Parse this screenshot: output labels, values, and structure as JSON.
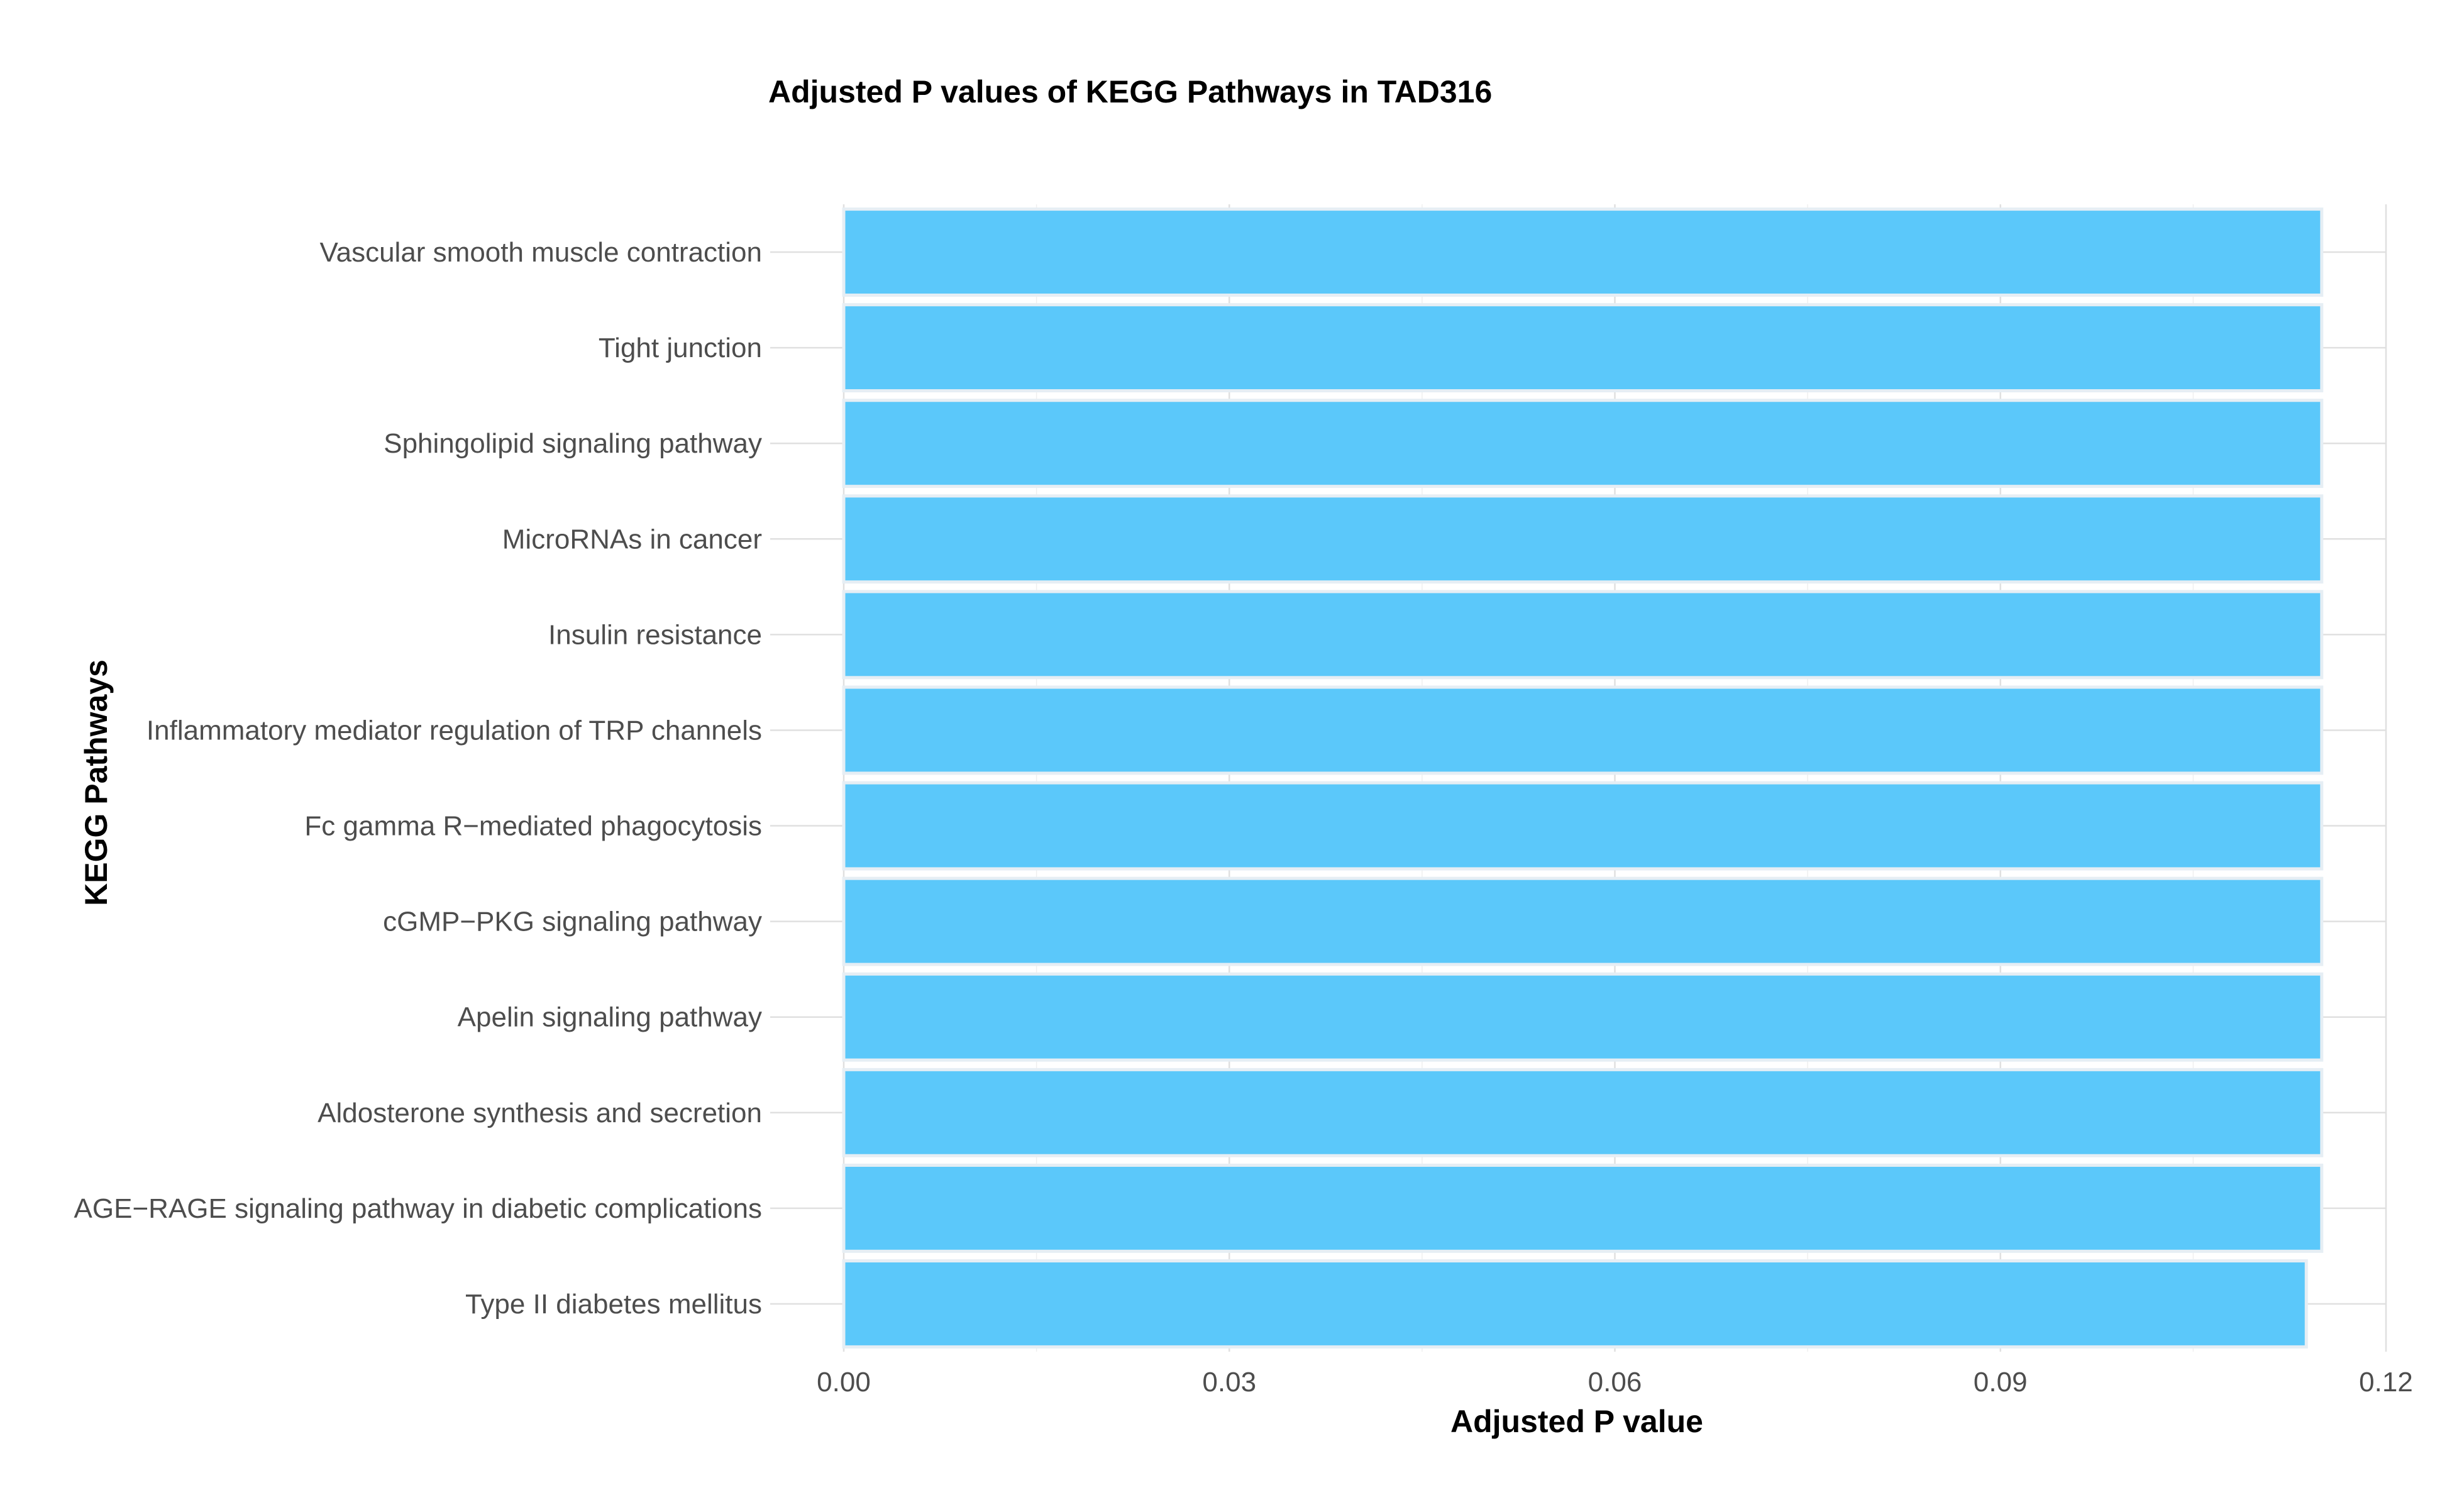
{
  "chart_data": {
    "type": "bar",
    "orientation": "horizontal",
    "title": "Adjusted P values of KEGG Pathways in TAD316",
    "xlabel": "Adjusted P value",
    "ylabel": "KEGG Pathways",
    "categories": [
      "Vascular smooth muscle contraction",
      "Tight junction",
      "Sphingolipid signaling pathway",
      "MicroRNAs in cancer",
      "Insulin resistance",
      "Inflammatory mediator regulation of TRP channels",
      "Fc gamma R−mediated phagocytosis",
      "cGMP−PKG signaling pathway",
      "Apelin signaling pathway",
      "Aldosterone synthesis and secretion",
      "AGE−RAGE signaling pathway in diabetic complications",
      "Type II diabetes mellitus"
    ],
    "values": [
      0.115,
      0.115,
      0.115,
      0.115,
      0.115,
      0.115,
      0.115,
      0.115,
      0.115,
      0.115,
      0.115,
      0.1138
    ],
    "xlim": [
      0,
      0.12
    ],
    "xticks": [
      0,
      0.03,
      0.06,
      0.09,
      0.12
    ],
    "xtick_labels": [
      "0.00",
      "0.03",
      "0.06",
      "0.09",
      "0.12"
    ],
    "bar_color": "#5bc8fa",
    "grid": true,
    "legend": "none"
  }
}
